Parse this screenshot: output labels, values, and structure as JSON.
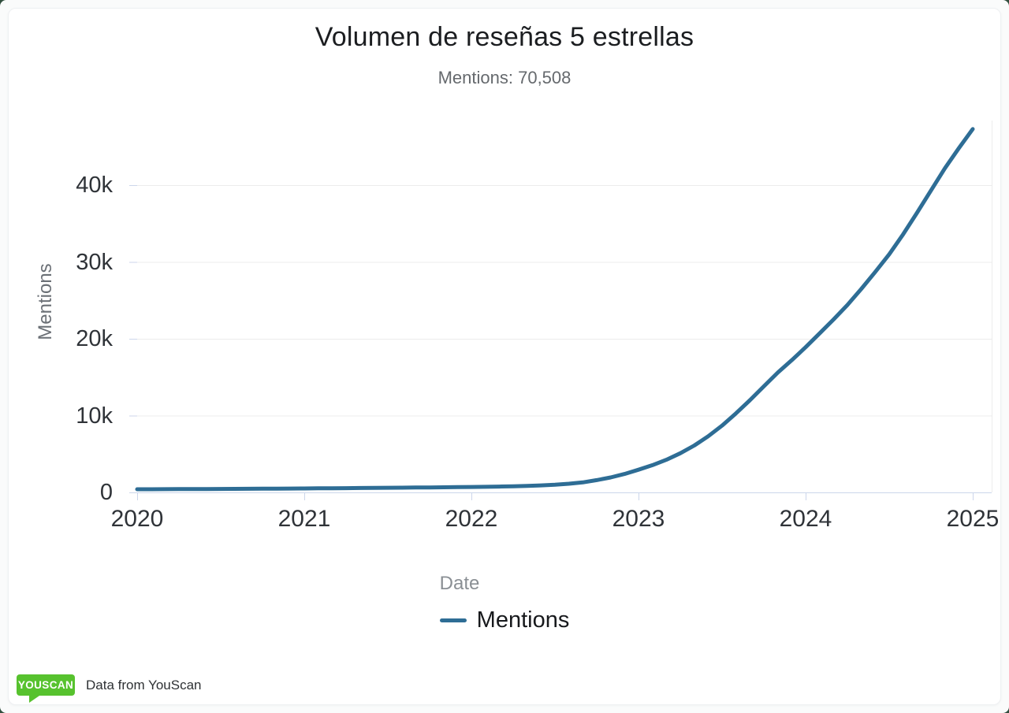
{
  "colors": {
    "line": "#2e6d95",
    "grid": "#ececec",
    "axis": "#ccd6eb",
    "logo_green": "#57c22e"
  },
  "chart_data": {
    "type": "line",
    "title": "Volumen de reseñas 5 estrellas",
    "subtitle": "Mentions: 70,508",
    "xlabel": "Date",
    "ylabel": "Mentions",
    "legend_position": "bottom",
    "grid": "horizontal-only",
    "xlim": [
      "2020-01",
      "2025-02"
    ],
    "ylim": [
      0,
      48400
    ],
    "xticks": [
      "2020",
      "2021",
      "2022",
      "2023",
      "2024",
      "2025"
    ],
    "yticks": [
      {
        "value": 0,
        "label": "0"
      },
      {
        "value": 10000,
        "label": "10k"
      },
      {
        "value": 20000,
        "label": "20k"
      },
      {
        "value": 30000,
        "label": "30k"
      },
      {
        "value": 40000,
        "label": "40k"
      }
    ],
    "series": [
      {
        "name": "Mentions",
        "color": "#2e6d95",
        "points": [
          [
            "2020-01",
            410
          ],
          [
            "2020-02",
            415
          ],
          [
            "2020-03",
            421
          ],
          [
            "2020-04",
            428
          ],
          [
            "2020-05",
            435
          ],
          [
            "2020-06",
            443
          ],
          [
            "2020-07",
            452
          ],
          [
            "2020-08",
            461
          ],
          [
            "2020-09",
            471
          ],
          [
            "2020-10",
            482
          ],
          [
            "2020-11",
            493
          ],
          [
            "2020-12",
            505
          ],
          [
            "2021-01",
            517
          ],
          [
            "2021-02",
            530
          ],
          [
            "2021-03",
            543
          ],
          [
            "2021-04",
            557
          ],
          [
            "2021-05",
            571
          ],
          [
            "2021-06",
            586
          ],
          [
            "2021-07",
            601
          ],
          [
            "2021-08",
            617
          ],
          [
            "2021-09",
            633
          ],
          [
            "2021-10",
            650
          ],
          [
            "2021-11",
            668
          ],
          [
            "2021-12",
            686
          ],
          [
            "2022-01",
            705
          ],
          [
            "2022-02",
            730
          ],
          [
            "2022-03",
            762
          ],
          [
            "2022-04",
            800
          ],
          [
            "2022-05",
            850
          ],
          [
            "2022-06",
            915
          ],
          [
            "2022-07",
            1000
          ],
          [
            "2022-08",
            1130
          ],
          [
            "2022-09",
            1300
          ],
          [
            "2022-10",
            1600
          ],
          [
            "2022-11",
            1950
          ],
          [
            "2022-12",
            2400
          ],
          [
            "2023-01",
            2950
          ],
          [
            "2023-02",
            3550
          ],
          [
            "2023-03",
            4250
          ],
          [
            "2023-04",
            5100
          ],
          [
            "2023-05",
            6100
          ],
          [
            "2023-06",
            7300
          ],
          [
            "2023-07",
            8700
          ],
          [
            "2023-08",
            10300
          ],
          [
            "2023-09",
            12000
          ],
          [
            "2023-10",
            13800
          ],
          [
            "2023-11",
            15600
          ],
          [
            "2023-12",
            17200
          ],
          [
            "2024-01",
            18900
          ],
          [
            "2024-02",
            20700
          ],
          [
            "2024-03",
            22500
          ],
          [
            "2024-04",
            24400
          ],
          [
            "2024-05",
            26500
          ],
          [
            "2024-06",
            28700
          ],
          [
            "2024-07",
            31000
          ],
          [
            "2024-08",
            33600
          ],
          [
            "2024-09",
            36400
          ],
          [
            "2024-10",
            39300
          ],
          [
            "2024-11",
            42200
          ],
          [
            "2024-12",
            44800
          ],
          [
            "2025-01",
            47300
          ]
        ]
      }
    ]
  },
  "footer": {
    "logo_text": "YOUSCAN",
    "text": "Data from YouScan"
  }
}
